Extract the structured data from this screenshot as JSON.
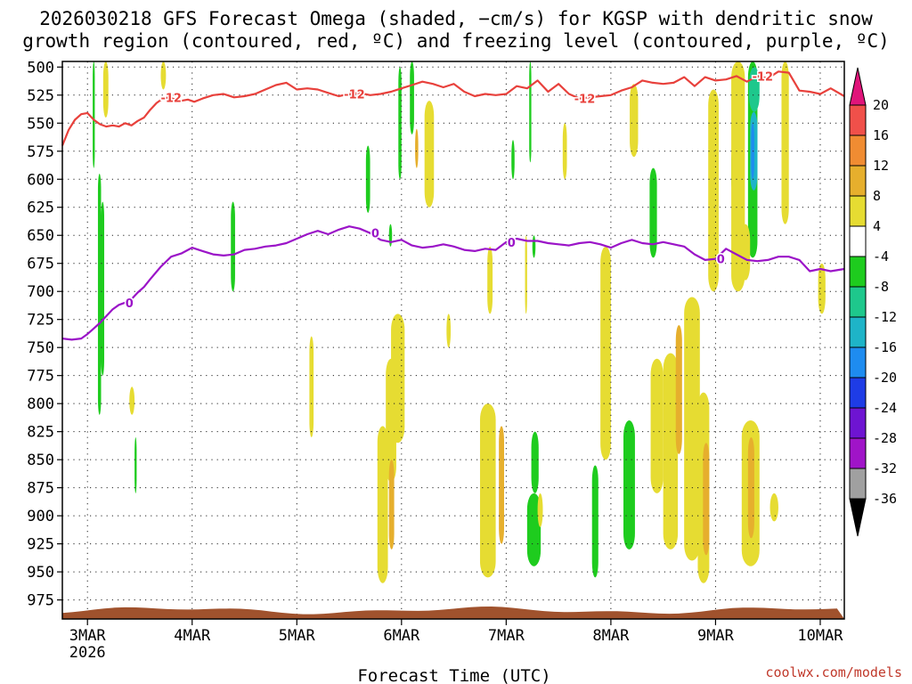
{
  "chart_data": {
    "type": "heatmap",
    "title_line1": "2026030218 GFS Forecast Omega (shaded, −cm/s) for KGSP with dendritic snow",
    "title_line2": "growth region (contoured, red, ºC) and freezing level (contoured, purple, ºC)",
    "xlabel": "Forecast Time (UTC)",
    "ylabel": "",
    "credit": "coolwx.com/models",
    "x_tick_labels": [
      "3MAR",
      "4MAR",
      "5MAR",
      "6MAR",
      "7MAR",
      "8MAR",
      "9MAR",
      "10MAR"
    ],
    "x_tick_sublabel": "2026",
    "x_range_days": [
      -0.24,
      7.23
    ],
    "y_ticks": [
      500,
      525,
      550,
      575,
      600,
      625,
      650,
      675,
      700,
      725,
      750,
      775,
      800,
      825,
      850,
      875,
      900,
      925,
      950,
      975
    ],
    "y_range_hpa": [
      495,
      992
    ],
    "colorbar": {
      "tick_labels": [
        "20",
        "16",
        "12",
        "8",
        "4",
        "-4",
        "-8",
        "-12",
        "-16",
        "-20",
        "-24",
        "-28",
        "-32",
        "-36"
      ],
      "colors": {
        "gt20": "#e0147a",
        "16_20": "#f0504a",
        "12_16": "#f08c32",
        "8_12": "#e6af2d",
        "4_8": "#e6dc32",
        "m4_4": "#ffffff",
        "m8_m4": "#1ecc1e",
        "m12_m8": "#1ec88c",
        "m16_m12": "#1eb4c8",
        "m20_m16": "#1e8cf0",
        "m24_m20": "#1e3ce6",
        "m28_m24": "#6e14d2",
        "m32_m28": "#a014c8",
        "m36_m32": "#a0a0a0",
        "lt_m36": "#000000"
      }
    },
    "series": [
      {
        "name": "Dendritic growth region (-12 °C) pressure, hPa",
        "color": "#e8413c",
        "label": "-12",
        "x_days": [
          -0.24,
          -0.18,
          -0.12,
          -0.06,
          0.0,
          0.06,
          0.12,
          0.18,
          0.24,
          0.3,
          0.36,
          0.42,
          0.48,
          0.54,
          0.6,
          0.66,
          0.72,
          0.78,
          0.84,
          0.9,
          0.96,
          1.02,
          1.1,
          1.2,
          1.3,
          1.4,
          1.5,
          1.6,
          1.7,
          1.8,
          1.9,
          2.0,
          2.1,
          2.2,
          2.3,
          2.4,
          2.5,
          2.6,
          2.7,
          2.8,
          2.9,
          3.0,
          3.1,
          3.2,
          3.3,
          3.4,
          3.5,
          3.6,
          3.7,
          3.8,
          3.9,
          4.0,
          4.1,
          4.2,
          4.3,
          4.4,
          4.5,
          4.6,
          4.7,
          4.8,
          4.9,
          5.0,
          5.1,
          5.2,
          5.3,
          5.4,
          5.5,
          5.6,
          5.7,
          5.8,
          5.9,
          6.0,
          6.1,
          6.2,
          6.3,
          6.4,
          6.5,
          6.6,
          6.7,
          6.8,
          6.9,
          7.0,
          7.1,
          7.23
        ],
        "y_hpa": [
          570,
          556,
          547,
          542,
          541,
          547,
          551,
          553,
          552,
          553,
          550,
          552,
          548,
          545,
          538,
          532,
          528,
          527,
          529,
          530,
          529,
          531,
          528,
          525,
          524,
          527,
          526,
          524,
          520,
          516,
          514,
          520,
          519,
          520,
          523,
          526,
          524,
          523,
          525,
          524,
          522,
          519,
          516,
          513,
          515,
          518,
          515,
          522,
          526,
          524,
          525,
          524,
          517,
          519,
          512,
          522,
          515,
          524,
          528,
          527,
          526,
          525,
          521,
          518,
          512,
          514,
          515,
          514,
          509,
          517,
          509,
          512,
          511,
          508,
          513,
          508,
          510,
          504,
          505,
          521,
          522,
          524,
          519,
          526
        ]
      },
      {
        "name": "Freezing level (0 °C) pressure, hPa",
        "color": "#9b14c8",
        "label": "0",
        "x_days": [
          -0.24,
          -0.15,
          -0.06,
          0.0,
          0.06,
          0.12,
          0.18,
          0.24,
          0.3,
          0.36,
          0.42,
          0.48,
          0.54,
          0.6,
          0.7,
          0.8,
          0.9,
          1.0,
          1.1,
          1.2,
          1.3,
          1.4,
          1.5,
          1.6,
          1.7,
          1.8,
          1.9,
          2.0,
          2.1,
          2.2,
          2.3,
          2.4,
          2.5,
          2.6,
          2.7,
          2.8,
          2.9,
          3.0,
          3.1,
          3.2,
          3.3,
          3.4,
          3.5,
          3.6,
          3.7,
          3.8,
          3.9,
          4.0,
          4.1,
          4.2,
          4.3,
          4.4,
          4.5,
          4.6,
          4.7,
          4.8,
          4.9,
          5.0,
          5.1,
          5.2,
          5.3,
          5.4,
          5.5,
          5.6,
          5.7,
          5.8,
          5.9,
          6.0,
          6.1,
          6.2,
          6.3,
          6.4,
          6.5,
          6.6,
          6.7,
          6.8,
          6.9,
          7.0,
          7.1,
          7.23
        ],
        "y_hpa": [
          742,
          743,
          742,
          738,
          733,
          728,
          722,
          716,
          712,
          710,
          707,
          701,
          696,
          689,
          678,
          669,
          666,
          661,
          664,
          667,
          668,
          667,
          663,
          662,
          660,
          659,
          657,
          653,
          649,
          646,
          649,
          645,
          642,
          644,
          648,
          654,
          656,
          654,
          659,
          661,
          660,
          658,
          660,
          663,
          664,
          662,
          663,
          656,
          653,
          655,
          655,
          657,
          658,
          659,
          657,
          656,
          658,
          661,
          657,
          654,
          657,
          658,
          656,
          658,
          660,
          667,
          672,
          671,
          662,
          667,
          672,
          673,
          672,
          669,
          669,
          672,
          682,
          680,
          682,
          680
        ]
      }
    ],
    "shaded_regions": [
      {
        "class": "m8_m4",
        "x": [
          0.05,
          0.07
        ],
        "p": [
          495,
          590
        ]
      },
      {
        "class": "m8_m4",
        "x": [
          0.1,
          0.13
        ],
        "p": [
          595,
          810
        ]
      },
      {
        "class": "m8_m4",
        "x": [
          0.13,
          0.16
        ],
        "p": [
          620,
          775
        ]
      },
      {
        "class": "m8_m4",
        "x": [
          0.45,
          0.47
        ],
        "p": [
          830,
          880
        ]
      },
      {
        "class": "m8_m4",
        "x": [
          1.37,
          1.41
        ],
        "p": [
          620,
          700
        ]
      },
      {
        "class": "m8_m4",
        "x": [
          2.66,
          2.7
        ],
        "p": [
          570,
          630
        ]
      },
      {
        "class": "m8_m4",
        "x": [
          2.88,
          2.91
        ],
        "p": [
          640,
          660
        ]
      },
      {
        "class": "m8_m4",
        "x": [
          2.97,
          3.0
        ],
        "p": [
          500,
          600
        ]
      },
      {
        "class": "m8_m4",
        "x": [
          3.08,
          3.12
        ],
        "p": [
          495,
          560
        ]
      },
      {
        "class": "m8_m4",
        "x": [
          4.2,
          4.33
        ],
        "p": [
          880,
          945
        ]
      },
      {
        "class": "m8_m4",
        "x": [
          4.24,
          4.31
        ],
        "p": [
          825,
          880
        ]
      },
      {
        "class": "m8_m4",
        "x": [
          4.25,
          4.28
        ],
        "p": [
          650,
          670
        ]
      },
      {
        "class": "m8_m4",
        "x": [
          4.22,
          4.24
        ],
        "p": [
          495,
          585
        ]
      },
      {
        "class": "m8_m4",
        "x": [
          4.05,
          4.08
        ],
        "p": [
          565,
          600
        ]
      },
      {
        "class": "m8_m4",
        "x": [
          4.82,
          4.88
        ],
        "p": [
          855,
          955
        ]
      },
      {
        "class": "m8_m4",
        "x": [
          5.12,
          5.23
        ],
        "p": [
          815,
          930
        ]
      },
      {
        "class": "m8_m4",
        "x": [
          5.37,
          5.44
        ],
        "p": [
          590,
          670
        ]
      },
      {
        "class": "m8_m4",
        "x": [
          6.15,
          6.21
        ],
        "p": [
          570,
          615
        ]
      },
      {
        "class": "m8_m4",
        "x": [
          6.31,
          6.4
        ],
        "p": [
          495,
          670
        ]
      },
      {
        "class": "m12_m8",
        "x": [
          6.32,
          6.42
        ],
        "p": [
          500,
          540
        ]
      },
      {
        "class": "m16_m12",
        "x": [
          6.33,
          6.4
        ],
        "p": [
          540,
          610
        ]
      },
      {
        "class": "m20_m16",
        "x": [
          6.34,
          6.37
        ],
        "p": [
          550,
          600
        ]
      },
      {
        "class": "4_8",
        "x": [
          0.15,
          0.2
        ],
        "p": [
          495,
          545
        ]
      },
      {
        "class": "4_8",
        "x": [
          0.7,
          0.75
        ],
        "p": [
          495,
          520
        ]
      },
      {
        "class": "4_8",
        "x": [
          0.4,
          0.45
        ],
        "p": [
          785,
          810
        ]
      },
      {
        "class": "4_8",
        "x": [
          2.12,
          2.16
        ],
        "p": [
          740,
          830
        ]
      },
      {
        "class": "4_8",
        "x": [
          2.77,
          2.87
        ],
        "p": [
          820,
          960
        ]
      },
      {
        "class": "4_8",
        "x": [
          2.85,
          2.95
        ],
        "p": [
          760,
          870
        ]
      },
      {
        "class": "4_8",
        "x": [
          2.9,
          3.03
        ],
        "p": [
          720,
          835
        ]
      },
      {
        "class": "4_8",
        "x": [
          3.22,
          3.31
        ],
        "p": [
          530,
          625
        ]
      },
      {
        "class": "4_8",
        "x": [
          3.43,
          3.47
        ],
        "p": [
          720,
          750
        ]
      },
      {
        "class": "4_8",
        "x": [
          3.75,
          3.9
        ],
        "p": [
          800,
          955
        ]
      },
      {
        "class": "4_8",
        "x": [
          3.82,
          3.87
        ],
        "p": [
          660,
          720
        ]
      },
      {
        "class": "4_8",
        "x": [
          4.18,
          4.2
        ],
        "p": [
          650,
          720
        ]
      },
      {
        "class": "4_8",
        "x": [
          4.3,
          4.35
        ],
        "p": [
          880,
          910
        ]
      },
      {
        "class": "4_8",
        "x": [
          4.54,
          4.58
        ],
        "p": [
          550,
          600
        ]
      },
      {
        "class": "4_8",
        "x": [
          4.9,
          5.0
        ],
        "p": [
          660,
          850
        ]
      },
      {
        "class": "4_8",
        "x": [
          5.18,
          5.26
        ],
        "p": [
          515,
          580
        ]
      },
      {
        "class": "4_8",
        "x": [
          5.38,
          5.5
        ],
        "p": [
          760,
          880
        ]
      },
      {
        "class": "4_8",
        "x": [
          5.5,
          5.64
        ],
        "p": [
          755,
          930
        ]
      },
      {
        "class": "4_8",
        "x": [
          5.7,
          5.85
        ],
        "p": [
          705,
          940
        ]
      },
      {
        "class": "4_8",
        "x": [
          5.83,
          5.94
        ],
        "p": [
          790,
          960
        ]
      },
      {
        "class": "4_8",
        "x": [
          6.15,
          6.28
        ],
        "p": [
          495,
          700
        ]
      },
      {
        "class": "4_8",
        "x": [
          5.93,
          6.03
        ],
        "p": [
          520,
          700
        ]
      },
      {
        "class": "4_8",
        "x": [
          6.24,
          6.33
        ],
        "p": [
          640,
          690
        ]
      },
      {
        "class": "4_8",
        "x": [
          6.25,
          6.42
        ],
        "p": [
          815,
          945
        ]
      },
      {
        "class": "4_8",
        "x": [
          6.52,
          6.6
        ],
        "p": [
          880,
          905
        ]
      },
      {
        "class": "4_8",
        "x": [
          6.63,
          6.7
        ],
        "p": [
          495,
          640
        ]
      },
      {
        "class": "4_8",
        "x": [
          6.98,
          7.05
        ],
        "p": [
          675,
          720
        ]
      },
      {
        "class": "8_12",
        "x": [
          2.88,
          2.93
        ],
        "p": [
          850,
          930
        ]
      },
      {
        "class": "8_12",
        "x": [
          3.13,
          3.16
        ],
        "p": [
          555,
          590
        ]
      },
      {
        "class": "8_12",
        "x": [
          3.93,
          3.98
        ],
        "p": [
          820,
          925
        ]
      },
      {
        "class": "8_12",
        "x": [
          5.62,
          5.68
        ],
        "p": [
          730,
          845
        ]
      },
      {
        "class": "8_12",
        "x": [
          5.88,
          5.94
        ],
        "p": [
          835,
          935
        ]
      },
      {
        "class": "8_12",
        "x": [
          6.31,
          6.37
        ],
        "p": [
          830,
          920
        ]
      }
    ],
    "surface_color": "#a0522d"
  }
}
